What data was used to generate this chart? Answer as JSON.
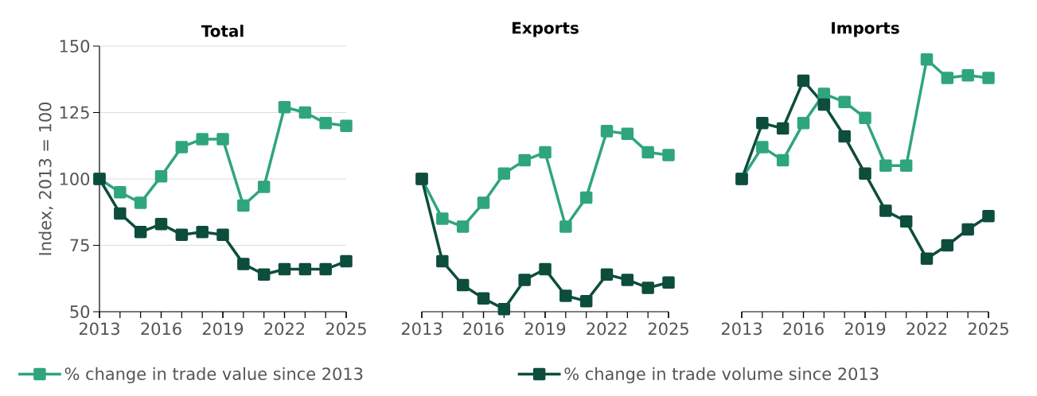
{
  "chart_data": [
    {
      "type": "line",
      "title": "Total",
      "ylabel": "Index, 2013 = 100",
      "x": [
        2013,
        2014,
        2015,
        2016,
        2017,
        2018,
        2019,
        2020,
        2021,
        2022,
        2023,
        2024,
        2025
      ],
      "xlim": [
        2013,
        2025
      ],
      "xticks": [
        2013,
        2016,
        2019,
        2022,
        2025
      ],
      "ylim": [
        50,
        150
      ],
      "yticks": [
        50,
        75,
        100,
        125,
        150
      ],
      "grid": "y",
      "marker": "square",
      "line_style": "solid",
      "legend": "bottom",
      "series": [
        {
          "name": "% change in trade value since 2013",
          "color": "#2fa57f",
          "values": [
            100,
            95,
            91,
            101,
            112,
            115,
            115,
            90,
            97,
            127,
            125,
            121,
            120
          ]
        },
        {
          "name": "% change in trade volume since 2013",
          "color": "#0d4d3c",
          "values": [
            100,
            87,
            80,
            83,
            79,
            80,
            79,
            68,
            64,
            66,
            66,
            66,
            69
          ]
        }
      ]
    },
    {
      "type": "line",
      "title": "Exports",
      "x": [
        2013,
        2014,
        2015,
        2016,
        2017,
        2018,
        2019,
        2020,
        2021,
        2022,
        2023,
        2024,
        2025
      ],
      "xlim": [
        2013,
        2025
      ],
      "xticks": [
        2013,
        2016,
        2019,
        2022,
        2025
      ],
      "ylim": [
        50,
        150
      ],
      "yticks": [
        50,
        75,
        100,
        125,
        150
      ],
      "grid": "y",
      "marker": "square",
      "line_style": "solid",
      "tick_labels": "x",
      "series": [
        {
          "color": "#2fa57f",
          "values": [
            100,
            85,
            82,
            91,
            102,
            107,
            110,
            82,
            93,
            118,
            117,
            110,
            109
          ]
        },
        {
          "color": "#0d4d3c",
          "values": [
            100,
            69,
            60,
            55,
            51,
            62,
            66,
            56,
            54,
            64,
            62,
            59,
            61
          ]
        }
      ]
    },
    {
      "type": "line",
      "title": "Imports",
      "x": [
        2013,
        2014,
        2015,
        2016,
        2017,
        2018,
        2019,
        2020,
        2021,
        2022,
        2023,
        2024,
        2025
      ],
      "xlim": [
        2013,
        2025
      ],
      "xticks": [
        2013,
        2016,
        2019,
        2022,
        2025
      ],
      "ylim": [
        50,
        150
      ],
      "yticks": [
        50,
        75,
        100,
        125,
        150
      ],
      "grid": "y",
      "marker": "square",
      "line_style": "solid",
      "tick_labels": "x",
      "series": [
        {
          "color": "#2fa57f",
          "values": [
            100,
            112,
            107,
            121,
            132,
            129,
            123,
            105,
            105,
            145,
            138,
            139,
            138
          ]
        },
        {
          "color": "#0d4d3c",
          "values": [
            100,
            121,
            119,
            137,
            128,
            116,
            102,
            88,
            84,
            70,
            75,
            81,
            86
          ]
        }
      ]
    }
  ]
}
